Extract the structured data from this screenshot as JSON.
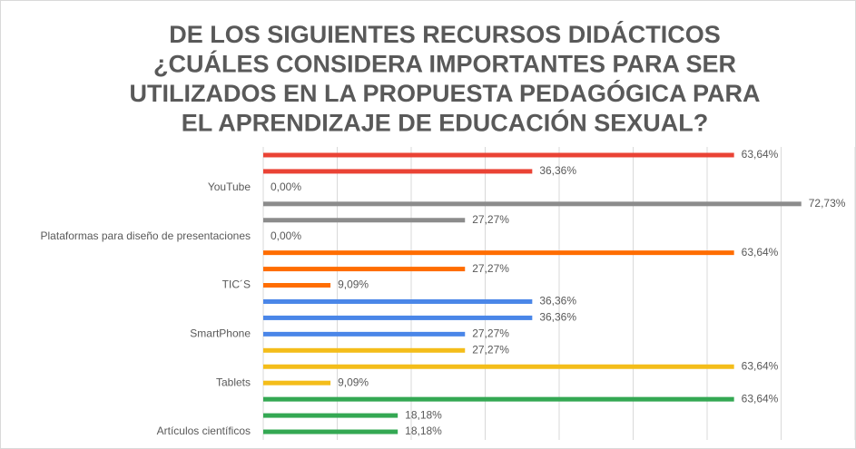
{
  "chart_data": {
    "type": "bar",
    "orientation": "horizontal",
    "title": [
      "DE LOS SIGUIENTES RECURSOS DIDÁCTICOS",
      "¿CUÁLES CONSIDERA IMPORTANTES PARA SER",
      "UTILIZADOS EN LA PROPUESTA PEDAGÓGICA PARA",
      "EL APRENDIZAJE DE EDUCACIÓN SEXUAL?"
    ],
    "categories": [
      "YouTube",
      "Plataformas para diseño de presentaciones",
      "TIC´S",
      "SmartPhone",
      "Tablets",
      "Artículos científicos"
    ],
    "category_colors": [
      "#ea4335",
      "#8c8c8c",
      "#ff6d01",
      "#4a86e8",
      "#f4bd1a",
      "#34a853"
    ],
    "series": [
      {
        "values": [
          63.64,
          72.73,
          63.64,
          36.36,
          27.27,
          63.64
        ],
        "value_labels": [
          "63,64%",
          "72,73%",
          "63,64%",
          "36,36%",
          "27,27%",
          "63,64%"
        ]
      },
      {
        "values": [
          36.36,
          27.27,
          27.27,
          36.36,
          63.64,
          18.18
        ],
        "value_labels": [
          "36,36%",
          "27,27%",
          "27,27%",
          "36,36%",
          "63,64%",
          "18,18%"
        ]
      },
      {
        "values": [
          0.0,
          0.0,
          9.09,
          27.27,
          9.09,
          18.18
        ],
        "value_labels": [
          "0,00%",
          "0,00%",
          "9,09%",
          "27,27%",
          "9,09%",
          "18,18%"
        ]
      }
    ],
    "xlim": [
      0,
      80
    ],
    "xticks": [
      0,
      10,
      20,
      30,
      40,
      50,
      60,
      70,
      80
    ],
    "grid": true
  }
}
